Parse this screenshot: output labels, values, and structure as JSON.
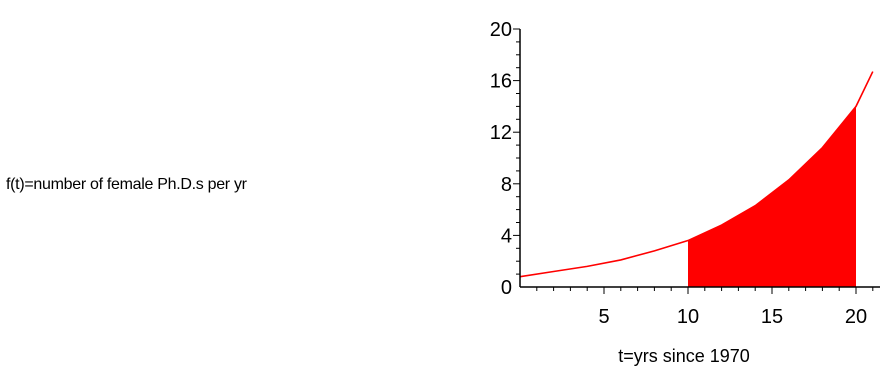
{
  "chart_data": {
    "type": "area",
    "ylabel": "f(t)=number of female Ph.D.s per yr",
    "xlabel": "t=yrs since 1970",
    "xlim": [
      0,
      21
    ],
    "ylim": [
      0,
      20
    ],
    "xticks": [
      5,
      10,
      15,
      20
    ],
    "yticks": [
      0,
      4,
      8,
      12,
      16,
      20
    ],
    "shaded_interval": [
      10,
      20
    ],
    "series": [
      {
        "x": [
          0,
          2,
          4,
          6,
          8,
          10,
          12,
          14,
          16,
          18,
          20,
          21
        ],
        "y": [
          0.8,
          1.2,
          1.6,
          2.1,
          2.8,
          3.6,
          4.8,
          6.3,
          8.3,
          10.8,
          14.0,
          16.7
        ]
      }
    ],
    "colors": {
      "curve": "#ff0000",
      "fill": "#ff0000",
      "axis": "#000000"
    }
  }
}
